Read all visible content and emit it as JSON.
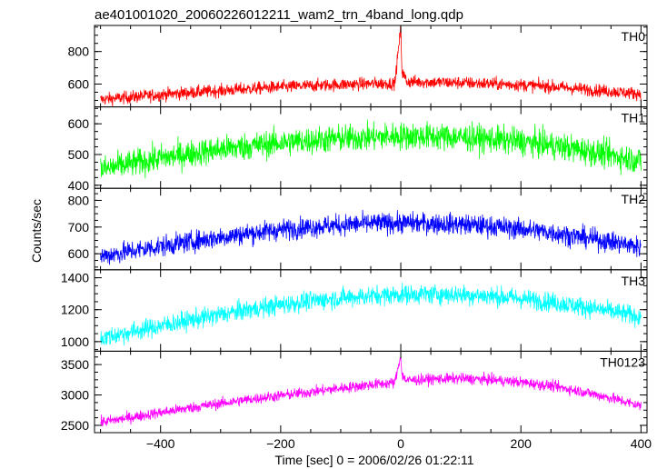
{
  "chart_data": {
    "type": "line",
    "title": "ae401001020_20060226012211_wam2_trn_4band_long.qdp",
    "xlabel": "Time [sec] 0 = 2006/02/26 01:22:11",
    "ylabel": "Counts/sec",
    "xlim": [
      -510,
      410
    ],
    "x_ticks": [
      -400,
      -200,
      0,
      200,
      400
    ],
    "grid": false,
    "panels": [
      {
        "name": "TH0",
        "color": "#ff0000",
        "ylim": [
          460,
          960
        ],
        "y_ticks": [
          600,
          800
        ],
        "x": [
          -500,
          -450,
          -400,
          -350,
          -300,
          -250,
          -200,
          -150,
          -100,
          -50,
          -10,
          0,
          2,
          10,
          50,
          100,
          150,
          200,
          250,
          300,
          350,
          400
        ],
        "y": [
          505,
          520,
          535,
          548,
          560,
          572,
          582,
          590,
          597,
          602,
          605,
          945,
          680,
          615,
          612,
          608,
          602,
          595,
          585,
          570,
          555,
          540
        ],
        "noise": 35
      },
      {
        "name": "TH1",
        "color": "#00ff00",
        "ylim": [
          390,
          655
        ],
        "y_ticks": [
          400,
          500,
          600
        ],
        "x": [
          -500,
          -450,
          -400,
          -350,
          -300,
          -250,
          -200,
          -150,
          -100,
          -50,
          0,
          50,
          100,
          150,
          200,
          250,
          300,
          350,
          400
        ],
        "y": [
          450,
          470,
          488,
          503,
          517,
          528,
          538,
          546,
          552,
          556,
          560,
          559,
          556,
          550,
          542,
          530,
          515,
          498,
          480
        ],
        "noise": 40
      },
      {
        "name": "TH2",
        "color": "#0000ff",
        "ylim": [
          540,
          845
        ],
        "y_ticks": [
          600,
          700,
          800
        ],
        "x": [
          -500,
          -450,
          -400,
          -350,
          -300,
          -250,
          -200,
          -150,
          -100,
          -50,
          0,
          50,
          100,
          150,
          200,
          250,
          300,
          350,
          400
        ],
        "y": [
          590,
          610,
          628,
          645,
          662,
          677,
          690,
          700,
          708,
          713,
          715,
          714,
          710,
          703,
          693,
          680,
          662,
          645,
          625
        ],
        "noise": 35
      },
      {
        "name": "TH3",
        "color": "#00ffff",
        "ylim": [
          940,
          1450
        ],
        "y_ticks": [
          1000,
          1200,
          1400
        ],
        "x": [
          -500,
          -450,
          -400,
          -350,
          -300,
          -250,
          -200,
          -150,
          -100,
          -50,
          0,
          50,
          100,
          150,
          200,
          250,
          300,
          350,
          400
        ],
        "y": [
          1020,
          1060,
          1098,
          1135,
          1170,
          1202,
          1230,
          1254,
          1273,
          1287,
          1295,
          1297,
          1294,
          1285,
          1270,
          1248,
          1220,
          1190,
          1155
        ],
        "noise": 55
      },
      {
        "name": "TH0123",
        "color": "#ff00ff",
        "ylim": [
          2380,
          3720
        ],
        "y_ticks": [
          2500,
          3000,
          3500
        ],
        "x": [
          -500,
          -450,
          -400,
          -350,
          -300,
          -250,
          -200,
          -150,
          -100,
          -50,
          -10,
          0,
          2,
          10,
          50,
          100,
          150,
          200,
          250,
          300,
          350,
          400
        ],
        "y": [
          2550,
          2630,
          2710,
          2790,
          2860,
          2930,
          2990,
          3050,
          3110,
          3170,
          3200,
          3650,
          3320,
          3240,
          3260,
          3270,
          3250,
          3210,
          3150,
          3060,
          2950,
          2820
        ],
        "noise": 80
      }
    ]
  }
}
